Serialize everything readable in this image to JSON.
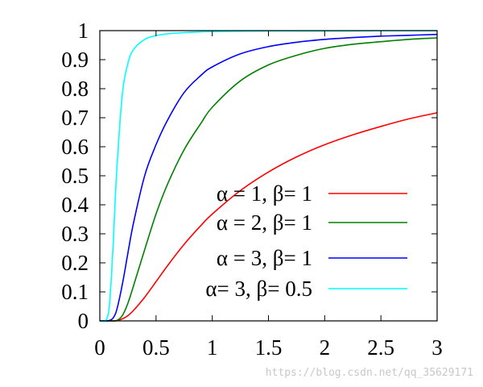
{
  "chart_data": {
    "type": "line",
    "x": [
      0.02,
      0.05,
      0.08,
      0.1,
      0.12,
      0.15,
      0.2,
      0.25,
      0.3,
      0.4,
      0.5,
      0.6,
      0.75,
      0.9,
      1.0,
      1.25,
      1.5,
      1.75,
      2.0,
      2.25,
      2.5,
      2.75,
      3.0
    ],
    "xlim": [
      0,
      3
    ],
    "ylim": [
      0,
      1
    ],
    "xticks": [
      "0",
      "0.5",
      "1",
      "1.5",
      "2",
      "2.5",
      "3"
    ],
    "yticks": [
      "0",
      "0.1",
      "0.2",
      "0.3",
      "0.4",
      "0.5",
      "0.6",
      "0.7",
      "0.8",
      "0.9",
      "1"
    ],
    "legend_position": "bottom-right",
    "grid": false,
    "series": [
      {
        "name": "α = 1, β= 1",
        "color": "#ff0000",
        "values": [
          0.0,
          0.0,
          0.0,
          0.0,
          0.0,
          0.001,
          0.007,
          0.018,
          0.036,
          0.082,
          0.135,
          0.189,
          0.264,
          0.329,
          0.368,
          0.449,
          0.513,
          0.565,
          0.607,
          0.641,
          0.67,
          0.696,
          0.717
        ]
      },
      {
        "name": "α = 2, β= 1",
        "color": "#008000",
        "values": [
          0.0,
          0.0,
          0.0,
          0.0,
          0.0,
          0.001,
          0.018,
          0.061,
          0.121,
          0.247,
          0.368,
          0.469,
          0.59,
          0.681,
          0.736,
          0.827,
          0.882,
          0.915,
          0.939,
          0.953,
          0.962,
          0.97,
          0.975
        ]
      },
      {
        "name": "α = 3, β= 1",
        "color": "#0000ff",
        "values": [
          0.0,
          0.0,
          0.001,
          0.004,
          0.011,
          0.037,
          0.125,
          0.234,
          0.338,
          0.502,
          0.607,
          0.69,
          0.787,
          0.846,
          0.875,
          0.92,
          0.945,
          0.96,
          0.97,
          0.976,
          0.981,
          0.984,
          0.987
        ]
      },
      {
        "name": "α= 3, β= 0.5",
        "color": "#00ffff",
        "values": [
          0.0,
          0.0,
          0.035,
          0.135,
          0.274,
          0.513,
          0.779,
          0.887,
          0.935,
          0.97,
          0.983,
          0.989,
          0.993,
          0.996,
          0.997,
          0.998,
          0.999,
          0.999,
          0.999,
          0.999,
          1.0,
          1.0,
          1.0
        ]
      }
    ]
  },
  "watermark": "https://blog.csdn.net/qq_35629171"
}
